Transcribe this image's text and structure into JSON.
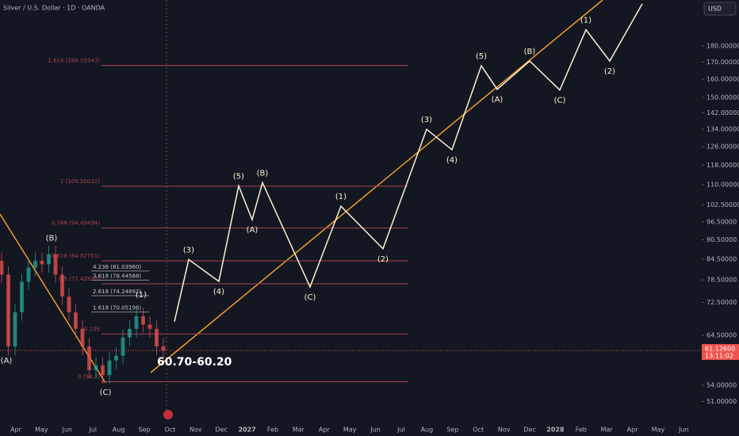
{
  "header": {
    "title": "Silver / U.S. Dollar · 1D · OANDA",
    "currency": "USD"
  },
  "chart_data": {
    "type": "candlestick",
    "log_scale": true,
    "ylim": [
      48,
      212
    ],
    "yticks": [
      {
        "value": 51,
        "label": "51.00000"
      },
      {
        "value": 54,
        "label": "54.00000"
      },
      {
        "value": 64.5,
        "label": "64.50000"
      },
      {
        "value": 72.5,
        "label": "72.50000"
      },
      {
        "value": 78.5,
        "label": "78.50000"
      },
      {
        "value": 84.5,
        "label": "84.50000"
      },
      {
        "value": 90.5,
        "label": "90.50000"
      },
      {
        "value": 96.5,
        "label": "96.50000"
      },
      {
        "value": 102.5,
        "label": "102.50000"
      },
      {
        "value": 110,
        "label": "110.00000"
      },
      {
        "value": 118,
        "label": "118.00000"
      },
      {
        "value": 126,
        "label": "126.00000"
      },
      {
        "value": 134,
        "label": "134.00000"
      },
      {
        "value": 142,
        "label": "142.00000"
      },
      {
        "value": 150,
        "label": "150.00000"
      },
      {
        "value": 160,
        "label": "160.00000"
      },
      {
        "value": 170,
        "label": "170.00000"
      },
      {
        "value": 180,
        "label": "180.00000"
      }
    ],
    "x_labels": [
      "Apr",
      "May",
      "Jun",
      "Jul",
      "Aug",
      "Sep",
      "Oct",
      "Nov",
      "Dec",
      "2027",
      "Feb",
      "Mar",
      "Apr",
      "May",
      "Jun",
      "Jul",
      "Aug",
      "Sep",
      "Oct",
      "Nov",
      "Dec",
      "2028",
      "Feb",
      "Mar",
      "Apr",
      "May",
      "Jun"
    ],
    "up_color": "#26a69a",
    "down_color": "#ef5350",
    "candles": {
      "open": [
        84,
        80,
        62,
        70,
        78,
        82,
        84,
        83,
        86,
        80,
        74,
        70,
        66,
        62,
        57,
        58,
        56,
        59,
        60,
        64,
        66,
        69,
        67,
        66,
        62
      ],
      "high": [
        86.5,
        82.4,
        72.1,
        80.3,
        84.5,
        86.5,
        86.5,
        88.6,
        88.6,
        82.4,
        76.2,
        72.1,
        68.0,
        63.9,
        59.7,
        59.7,
        60.8,
        61.8,
        65.9,
        68.0,
        71.1,
        71.1,
        69.0,
        68.0,
        63.9
      ],
      "low": [
        77.6,
        60.1,
        60.1,
        67.9,
        75.7,
        79.5,
        80.5,
        80.5,
        77.6,
        71.8,
        67.9,
        64.0,
        60.1,
        55.3,
        55.3,
        54.3,
        54.3,
        57.2,
        58.2,
        62.1,
        64.0,
        65.0,
        64.0,
        60.1,
        59.3
      ],
      "close": [
        80,
        62,
        70,
        78,
        82,
        84,
        83,
        86,
        80,
        74,
        70,
        66,
        62,
        57,
        58,
        56,
        59,
        60,
        64,
        66,
        69,
        67,
        66,
        62,
        61.1
      ]
    },
    "history_labels": {
      "labels": [
        "(A)",
        "(B)",
        "(C)",
        "(1)"
      ],
      "values": [
        61,
        88,
        54.5,
        72
      ]
    },
    "projection": {
      "color": "#fff1cf",
      "labels": [
        null,
        "(3)",
        "(4)",
        "(5)",
        "(A)",
        "(B)",
        "(C)",
        "(1)",
        "(2)",
        "(3)",
        "(4)",
        "(5)",
        "(A)",
        "(B)",
        "(C)",
        "(1)",
        "(2)",
        null
      ],
      "values": [
        67.7,
        84.4,
        78.1,
        109.6,
        97.2,
        110.9,
        76.6,
        102.0,
        87.7,
        134.0,
        124.6,
        167.9,
        154.4,
        170.7,
        154.0,
        190.8,
        170.7,
        209.2
      ]
    },
    "fib_color": "#a8404f",
    "fib_levels": [
      {
        "value": 168.05543,
        "label": "1.618 (168.05543)"
      },
      {
        "value": 109.50032,
        "label": "1 (109.50032)"
      },
      {
        "value": 94.40494,
        "label": "0.786 (94.40494)"
      },
      {
        "value": 84.02751,
        "label": "0.618 (84.02751)"
      },
      {
        "value": 77.42832,
        "label": "0.5 (77.42832)"
      },
      {
        "value": 64.8,
        "label": "0.236"
      },
      {
        "value": 54.7,
        "label": "0 (54.7)"
      }
    ],
    "fib_ext_levels": [
      {
        "value": 81.0396,
        "label": "4.236 (81.03960)"
      },
      {
        "value": 78.44588,
        "label": "3.618 (78.44588)"
      },
      {
        "value": 74.24892,
        "label": "2.618 (74.24892)"
      },
      {
        "value": 70.05196,
        "label": "1.618 (70.05196)"
      }
    ],
    "last_price": {
      "value": 61.126,
      "label": "61.12600"
    },
    "countdown": "13:11:02",
    "annotation": "60.70-60.20"
  }
}
